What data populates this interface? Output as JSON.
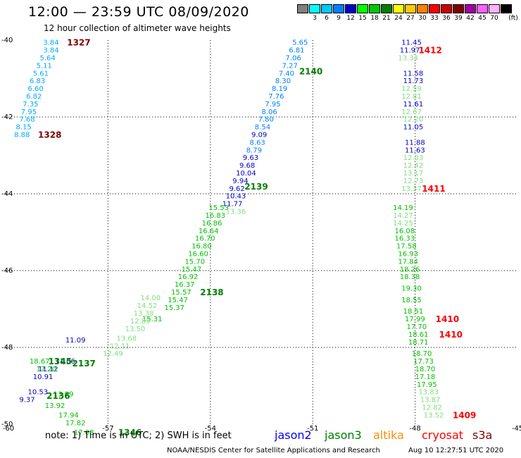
{
  "header": {
    "title": "12:00 — 23:59 UTC 08/09/2020",
    "subtitle": "12 hour collection of altimeter wave heights"
  },
  "legend": {
    "unit": "(ft)",
    "swatches": [
      {
        "label": "",
        "color": "#7f7f7f"
      },
      {
        "label": "3",
        "color": "#00ffff"
      },
      {
        "label": "6",
        "color": "#00c8ff"
      },
      {
        "label": "9",
        "color": "#0080ff"
      },
      {
        "label": "12",
        "color": "#0000c8"
      },
      {
        "label": "15",
        "color": "#00ff00"
      },
      {
        "label": "18",
        "color": "#00c800"
      },
      {
        "label": "21",
        "color": "#008000"
      },
      {
        "label": "24",
        "color": "#ffff00"
      },
      {
        "label": "27",
        "color": "#ffc800"
      },
      {
        "label": "30",
        "color": "#ff8000"
      },
      {
        "label": "33",
        "color": "#ff0000"
      },
      {
        "label": "36",
        "color": "#c80000"
      },
      {
        "label": "39",
        "color": "#800000"
      },
      {
        "label": "42",
        "color": "#a000a0"
      },
      {
        "label": "45",
        "color": "#ff60ff"
      },
      {
        "label": "70",
        "color": "#ffb0ff"
      },
      {
        "label": "",
        "color": "#000000"
      }
    ]
  },
  "axes": {
    "lat_labels": [
      "-40",
      "-42",
      "-44",
      "-46",
      "-48",
      "-50"
    ],
    "lon_labels": [
      "-60",
      "-57",
      "-54",
      "-51",
      "-48",
      "-45"
    ]
  },
  "chart_data": {
    "type": "scatter",
    "x_range": [
      -60,
      -45
    ],
    "y_range": [
      -50,
      -40
    ],
    "tracks": [
      {
        "color": "#00aaff",
        "labels": [
          {
            "v": "3.84",
            "x": -58.9,
            "y": -40.05
          },
          {
            "v": "3.84",
            "x": -58.9,
            "y": -40.25
          },
          {
            "v": "5.64",
            "x": -59.0,
            "y": -40.45
          },
          {
            "v": "5.11",
            "x": -59.1,
            "y": -40.65
          },
          {
            "v": "5.61",
            "x": -59.2,
            "y": -40.85
          },
          {
            "v": "6.83",
            "x": -59.3,
            "y": -41.05
          },
          {
            "v": "6.60",
            "x": -59.35,
            "y": -41.25
          },
          {
            "v": "6.82",
            "x": -59.4,
            "y": -41.45
          },
          {
            "v": "7.35",
            "x": -59.5,
            "y": -41.65
          },
          {
            "v": "7.95",
            "x": -59.55,
            "y": -41.85
          },
          {
            "v": "7.68",
            "x": -59.6,
            "y": -42.05
          },
          {
            "v": "8.15",
            "x": -59.7,
            "y": -42.25
          },
          {
            "v": "8.88",
            "x": -59.75,
            "y": -42.45
          }
        ]
      },
      {
        "color": "#0080ff",
        "labels": [
          {
            "v": "5.65",
            "x": -51.6,
            "y": -40.05
          },
          {
            "v": "6.81",
            "x": -51.7,
            "y": -40.25
          },
          {
            "v": "7.06",
            "x": -51.8,
            "y": -40.45
          },
          {
            "v": "7.27",
            "x": -51.9,
            "y": -40.65
          },
          {
            "v": "7.40",
            "x": -52.0,
            "y": -40.85
          },
          {
            "v": "8.30",
            "x": -52.1,
            "y": -41.05
          },
          {
            "v": "8.19",
            "x": -52.2,
            "y": -41.25
          },
          {
            "v": "7.76",
            "x": -52.3,
            "y": -41.45
          },
          {
            "v": "7.95",
            "x": -52.4,
            "y": -41.65
          },
          {
            "v": "8.06",
            "x": -52.5,
            "y": -41.85
          },
          {
            "v": "7.80",
            "x": -52.6,
            "y": -42.05
          },
          {
            "v": "8.54",
            "x": -52.7,
            "y": -42.25
          },
          {
            "v": "8.63",
            "x": -52.85,
            "y": -42.65
          },
          {
            "v": "8.79",
            "x": -52.95,
            "y": -42.85
          }
        ]
      },
      {
        "color": "#0000c8",
        "labels": [
          {
            "v": "9.09",
            "x": -52.8,
            "y": -42.45
          },
          {
            "v": "9.63",
            "x": -53.05,
            "y": -43.05
          },
          {
            "v": "9.68",
            "x": -53.15,
            "y": -43.25
          },
          {
            "v": "10.04",
            "x": -53.25,
            "y": -43.45
          },
          {
            "v": "9.94",
            "x": -53.35,
            "y": -43.65
          },
          {
            "v": "9.62",
            "x": -53.45,
            "y": -43.85
          },
          {
            "v": "10.43",
            "x": -53.55,
            "y": -44.05
          },
          {
            "v": "11.77",
            "x": -53.65,
            "y": -44.25
          },
          {
            "v": "11.45",
            "x": -48.4,
            "y": -40.05
          },
          {
            "v": "11.97",
            "x": -48.45,
            "y": -40.25
          },
          {
            "v": "11.58",
            "x": -48.35,
            "y": -40.85
          },
          {
            "v": "11.73",
            "x": -48.35,
            "y": -41.05
          },
          {
            "v": "11.61",
            "x": -48.35,
            "y": -41.65
          },
          {
            "v": "11.05",
            "x": -48.35,
            "y": -42.25
          },
          {
            "v": "11.88",
            "x": -48.3,
            "y": -42.65
          },
          {
            "v": "11.63",
            "x": -48.3,
            "y": -42.85
          },
          {
            "v": "11.09",
            "x": -58.25,
            "y": -47.8
          },
          {
            "v": "11.06",
            "x": -58.55,
            "y": -48.35
          },
          {
            "v": "11.12",
            "x": -59.05,
            "y": -48.55
          },
          {
            "v": "10.91",
            "x": -59.2,
            "y": -48.75
          },
          {
            "v": "10.53",
            "x": -59.35,
            "y": -49.15
          },
          {
            "v": "9.37",
            "x": -59.6,
            "y": -49.35
          }
        ]
      },
      {
        "color": "#00c000",
        "labels": [
          {
            "v": "15.53",
            "x": -54.05,
            "y": -44.35
          },
          {
            "v": "16.83",
            "x": -54.15,
            "y": -44.55
          },
          {
            "v": "16.86",
            "x": -54.25,
            "y": -44.75
          },
          {
            "v": "16.64",
            "x": -54.35,
            "y": -44.95
          },
          {
            "v": "16.70",
            "x": -54.45,
            "y": -45.15
          },
          {
            "v": "16.80",
            "x": -54.55,
            "y": -45.35
          },
          {
            "v": "16.60",
            "x": -54.65,
            "y": -45.55
          },
          {
            "v": "15.70",
            "x": -54.75,
            "y": -45.75
          },
          {
            "v": "15.47",
            "x": -54.85,
            "y": -45.95
          },
          {
            "v": "16.92",
            "x": -54.95,
            "y": -46.15
          },
          {
            "v": "16.37",
            "x": -55.05,
            "y": -46.35
          },
          {
            "v": "15.57",
            "x": -55.15,
            "y": -46.55
          },
          {
            "v": "15.47",
            "x": -55.25,
            "y": -46.75
          },
          {
            "v": "15.37",
            "x": -55.35,
            "y": -46.95
          },
          {
            "v": "15.31",
            "x": -56.0,
            "y": -47.25
          },
          {
            "v": "18.67",
            "x": -59.3,
            "y": -48.35
          },
          {
            "v": "17.20",
            "x": -59.1,
            "y": -48.55
          },
          {
            "v": "13.99",
            "x": -58.6,
            "y": -49.2
          },
          {
            "v": "13.92",
            "x": -58.85,
            "y": -49.5
          },
          {
            "v": "17.94",
            "x": -58.45,
            "y": -49.75
          },
          {
            "v": "17.82",
            "x": -58.25,
            "y": -49.95
          },
          {
            "v": "17.08",
            "x": -58.0,
            "y": -50.2
          },
          {
            "v": "14.19",
            "x": -48.65,
            "y": -44.35
          },
          {
            "v": "16.08",
            "x": -48.6,
            "y": -44.95
          },
          {
            "v": "16.33",
            "x": -48.6,
            "y": -45.15
          },
          {
            "v": "17.58",
            "x": -48.55,
            "y": -45.35
          },
          {
            "v": "16.93",
            "x": -48.5,
            "y": -45.55
          },
          {
            "v": "17.84",
            "x": -48.5,
            "y": -45.75
          },
          {
            "v": "18.26",
            "x": -48.45,
            "y": -45.95
          },
          {
            "v": "18.38",
            "x": -48.45,
            "y": -46.15
          },
          {
            "v": "19.30",
            "x": -48.4,
            "y": -46.45
          },
          {
            "v": "18.55",
            "x": -48.4,
            "y": -46.75
          },
          {
            "v": "18.51",
            "x": -48.35,
            "y": -47.05
          },
          {
            "v": "17.99",
            "x": -48.3,
            "y": -47.25
          },
          {
            "v": "17.70",
            "x": -48.25,
            "y": -47.45
          },
          {
            "v": "18.61",
            "x": -48.2,
            "y": -47.65
          },
          {
            "v": "18.71",
            "x": -48.2,
            "y": -47.85
          },
          {
            "v": "18.70",
            "x": -48.1,
            "y": -48.15
          },
          {
            "v": "17.73",
            "x": -48.05,
            "y": -48.35
          },
          {
            "v": "18.70",
            "x": -48.0,
            "y": -48.55
          },
          {
            "v": "17.18",
            "x": -48.0,
            "y": -48.75
          },
          {
            "v": "17.95",
            "x": -47.95,
            "y": -48.95
          }
        ]
      },
      {
        "color": "#7fe07f",
        "labels": [
          {
            "v": "13.36",
            "x": -53.55,
            "y": -44.45
          },
          {
            "v": "14.00",
            "x": -56.05,
            "y": -46.7
          },
          {
            "v": "14.52",
            "x": -56.15,
            "y": -46.9
          },
          {
            "v": "13.38",
            "x": -56.25,
            "y": -47.1
          },
          {
            "v": "12.89",
            "x": -56.35,
            "y": -47.3
          },
          {
            "v": "13.50",
            "x": -56.5,
            "y": -47.5
          },
          {
            "v": "13.68",
            "x": -56.75,
            "y": -47.75
          },
          {
            "v": "12.11",
            "x": -56.95,
            "y": -47.95
          },
          {
            "v": "12.49",
            "x": -57.15,
            "y": -48.15
          },
          {
            "v": "13.34",
            "x": -48.5,
            "y": -40.45
          },
          {
            "v": "12.59",
            "x": -48.4,
            "y": -41.25
          },
          {
            "v": "12.81",
            "x": -48.4,
            "y": -41.45
          },
          {
            "v": "12.67",
            "x": -48.4,
            "y": -41.85
          },
          {
            "v": "12.20",
            "x": -48.35,
            "y": -42.05
          },
          {
            "v": "12.03",
            "x": -48.35,
            "y": -43.05
          },
          {
            "v": "12.42",
            "x": -48.35,
            "y": -43.25
          },
          {
            "v": "13.17",
            "x": -48.35,
            "y": -43.45
          },
          {
            "v": "12.73",
            "x": -48.35,
            "y": -43.65
          },
          {
            "v": "13.37",
            "x": -48.4,
            "y": -43.85
          },
          {
            "v": "14.27",
            "x": -48.65,
            "y": -44.55
          },
          {
            "v": "14.25",
            "x": -48.65,
            "y": -44.75
          },
          {
            "v": "13.83",
            "x": -47.9,
            "y": -49.15
          },
          {
            "v": "13.87",
            "x": -47.85,
            "y": -49.35
          },
          {
            "v": "12.82",
            "x": -47.8,
            "y": -49.55
          },
          {
            "v": "13.52",
            "x": -47.75,
            "y": -49.75
          }
        ]
      }
    ],
    "time_labels": [
      {
        "v": "1327",
        "x": -58.2,
        "y": -40.05,
        "color": "#800000"
      },
      {
        "v": "1328",
        "x": -59.05,
        "y": -42.45,
        "color": "#800000"
      },
      {
        "v": "2140",
        "x": -51.4,
        "y": -40.8,
        "color": "#008000"
      },
      {
        "v": "2139",
        "x": -53.0,
        "y": -43.8,
        "color": "#008000"
      },
      {
        "v": "2138",
        "x": -54.3,
        "y": -46.55,
        "color": "#008000"
      },
      {
        "v": "2137",
        "x": -58.05,
        "y": -48.4,
        "color": "#008000"
      },
      {
        "v": "1345",
        "x": -58.75,
        "y": -48.35,
        "color": "#008000"
      },
      {
        "v": "2136",
        "x": -58.8,
        "y": -49.25,
        "color": "#008000"
      },
      {
        "v": "1346",
        "x": -56.7,
        "y": -50.2,
        "color": "#008000"
      },
      {
        "v": "1412",
        "x": -47.9,
        "y": -40.25,
        "color": "#ff0000"
      },
      {
        "v": "1411",
        "x": -47.8,
        "y": -43.85,
        "color": "#ff0000"
      },
      {
        "v": "1410",
        "x": -47.4,
        "y": -47.25,
        "color": "#ff0000"
      },
      {
        "v": "1410",
        "x": -47.3,
        "y": -47.65,
        "color": "#ff0000"
      },
      {
        "v": "1409",
        "x": -46.9,
        "y": -49.75,
        "color": "#ff0000"
      }
    ]
  },
  "footer": {
    "note": "note: 1) Time is in UTC; 2) SWH is in feet",
    "satellites": [
      {
        "name": "jason2",
        "color": "#0000ff"
      },
      {
        "name": "jason3",
        "color": "#008000"
      },
      {
        "name": "altika",
        "color": "#ff8c00"
      },
      {
        "name": "cryosat",
        "color": "#ff0000"
      },
      {
        "name": "s3a",
        "color": "#800000"
      }
    ],
    "credit": "NOAA/NESDIS Center for Satellite Applications and Research",
    "timestamp": "Aug 10 12:27:51 UTC 2020"
  }
}
